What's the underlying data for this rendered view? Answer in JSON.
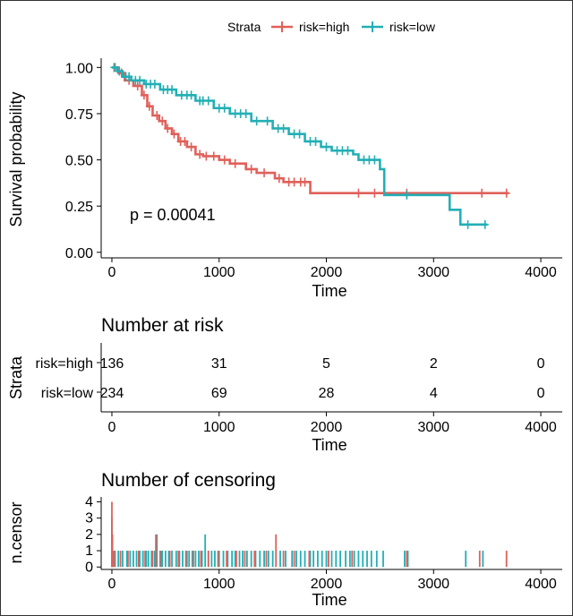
{
  "legend": {
    "title": "Strata",
    "items": [
      {
        "label": "risk=high",
        "color": "#E0605A"
      },
      {
        "label": "risk=low",
        "color": "#22AFB5"
      }
    ]
  },
  "chart_data": [
    {
      "type": "line",
      "name": "survival",
      "xlabel": "Time",
      "ylabel": "Survival probability",
      "xlim": [
        -100,
        4200
      ],
      "ylim": [
        -0.03,
        1.05
      ],
      "xticks": [
        0,
        1000,
        2000,
        3000,
        4000
      ],
      "yticks": [
        0.0,
        0.25,
        0.5,
        0.75,
        1.0
      ],
      "ytick_labels": [
        "0.00",
        "0.25",
        "0.50",
        "0.75",
        "1.00"
      ],
      "annotation": "p = 0.00041",
      "series": [
        {
          "name": "risk=high",
          "color": "#E0605A",
          "x": [
            0,
            60,
            120,
            200,
            280,
            330,
            380,
            440,
            500,
            560,
            620,
            700,
            780,
            850,
            1000,
            1100,
            1250,
            1350,
            1520,
            1600,
            1850,
            3700
          ],
          "y": [
            1.0,
            0.97,
            0.93,
            0.9,
            0.85,
            0.79,
            0.74,
            0.71,
            0.67,
            0.64,
            0.6,
            0.57,
            0.53,
            0.52,
            0.5,
            0.48,
            0.45,
            0.43,
            0.4,
            0.38,
            0.32,
            0.32
          ],
          "censor_x": [
            30,
            90,
            160,
            240,
            300,
            350,
            420,
            470,
            520,
            580,
            640,
            680,
            740,
            820,
            880,
            950,
            1050,
            1150,
            1300,
            1420,
            1560,
            1650,
            1700,
            1760,
            1800,
            2300,
            2450,
            2750,
            3450,
            3680
          ]
        },
        {
          "name": "risk=low",
          "color": "#22AFB5",
          "x": [
            0,
            50,
            100,
            180,
            300,
            450,
            600,
            780,
            950,
            1100,
            1300,
            1500,
            1650,
            1800,
            1950,
            2050,
            2250,
            2300,
            2500,
            2540,
            3150,
            3250,
            3500
          ],
          "y": [
            1.0,
            0.98,
            0.95,
            0.93,
            0.91,
            0.88,
            0.85,
            0.82,
            0.78,
            0.75,
            0.71,
            0.67,
            0.64,
            0.6,
            0.57,
            0.55,
            0.53,
            0.5,
            0.45,
            0.31,
            0.23,
            0.15,
            0.15
          ],
          "censor_x": [
            20,
            70,
            130,
            160,
            220,
            260,
            320,
            360,
            400,
            480,
            520,
            560,
            650,
            700,
            740,
            820,
            850,
            900,
            1000,
            1050,
            1150,
            1200,
            1250,
            1350,
            1450,
            1550,
            1600,
            1700,
            1750,
            1850,
            1900,
            2000,
            2100,
            2150,
            2200,
            2350,
            2400,
            2450,
            2750,
            3320,
            3480
          ]
        }
      ]
    },
    {
      "type": "table",
      "name": "number-at-risk",
      "title": "Number at risk",
      "xlabel": "Time",
      "ylabel": "Strata",
      "xticks": [
        0,
        1000,
        2000,
        3000,
        4000
      ],
      "rows": [
        {
          "label": "risk=high",
          "color": "#E0605A",
          "values": [
            "136",
            "31",
            "5",
            "2",
            "0"
          ]
        },
        {
          "label": "risk=low",
          "color": "#22AFB5",
          "values": [
            "234",
            "69",
            "28",
            "4",
            "0"
          ]
        }
      ]
    },
    {
      "type": "bar",
      "name": "number-of-censoring",
      "title": "Number of censoring",
      "xlabel": "Time",
      "ylabel": "n.censor",
      "xticks": [
        0,
        1000,
        2000,
        3000,
        4000
      ],
      "yticks": [
        0,
        1,
        2,
        3,
        4
      ],
      "ylim": [
        -0.15,
        4.3
      ],
      "series": [
        {
          "name": "risk=low",
          "color": "#22AFB5",
          "events": [
            [
              0,
              3
            ],
            [
              3,
              2
            ],
            [
              6,
              1
            ],
            [
              30,
              1
            ],
            [
              60,
              1
            ],
            [
              100,
              1
            ],
            [
              140,
              1
            ],
            [
              170,
              1
            ],
            [
              200,
              1
            ],
            [
              230,
              1
            ],
            [
              260,
              1
            ],
            [
              290,
              1
            ],
            [
              320,
              1
            ],
            [
              340,
              1
            ],
            [
              370,
              1
            ],
            [
              400,
              1
            ],
            [
              420,
              2
            ],
            [
              450,
              1
            ],
            [
              470,
              1
            ],
            [
              500,
              1
            ],
            [
              530,
              1
            ],
            [
              560,
              1
            ],
            [
              600,
              1
            ],
            [
              630,
              1
            ],
            [
              660,
              1
            ],
            [
              700,
              1
            ],
            [
              720,
              1
            ],
            [
              750,
              1
            ],
            [
              780,
              1
            ],
            [
              810,
              1
            ],
            [
              840,
              1
            ],
            [
              870,
              2
            ],
            [
              900,
              1
            ],
            [
              930,
              1
            ],
            [
              960,
              1
            ],
            [
              1000,
              1
            ],
            [
              1040,
              1
            ],
            [
              1080,
              1
            ],
            [
              1120,
              1
            ],
            [
              1150,
              1
            ],
            [
              1190,
              1
            ],
            [
              1220,
              1
            ],
            [
              1260,
              1
            ],
            [
              1300,
              1
            ],
            [
              1340,
              1
            ],
            [
              1380,
              1
            ],
            [
              1420,
              1
            ],
            [
              1460,
              1
            ],
            [
              1500,
              1
            ],
            [
              1570,
              1
            ],
            [
              1620,
              1
            ],
            [
              1680,
              1
            ],
            [
              1720,
              1
            ],
            [
              1760,
              1
            ],
            [
              1800,
              1
            ],
            [
              1850,
              1
            ],
            [
              1880,
              1
            ],
            [
              1920,
              1
            ],
            [
              1960,
              1
            ],
            [
              2000,
              1
            ],
            [
              2050,
              1
            ],
            [
              2090,
              1
            ],
            [
              2130,
              1
            ],
            [
              2180,
              1
            ],
            [
              2220,
              1
            ],
            [
              2260,
              1
            ],
            [
              2300,
              1
            ],
            [
              2340,
              1
            ],
            [
              2380,
              1
            ],
            [
              2420,
              1
            ],
            [
              2470,
              1
            ],
            [
              2530,
              1
            ],
            [
              2730,
              1
            ],
            [
              2760,
              1
            ],
            [
              3300,
              1
            ],
            [
              3460,
              1
            ]
          ]
        },
        {
          "name": "risk=high",
          "color": "#E0605A",
          "events": [
            [
              0,
              4
            ],
            [
              5,
              2
            ],
            [
              20,
              1
            ],
            [
              80,
              1
            ],
            [
              150,
              1
            ],
            [
              250,
              1
            ],
            [
              310,
              1
            ],
            [
              380,
              1
            ],
            [
              410,
              2
            ],
            [
              460,
              1
            ],
            [
              540,
              1
            ],
            [
              620,
              1
            ],
            [
              690,
              1
            ],
            [
              760,
              1
            ],
            [
              830,
              1
            ],
            [
              900,
              1
            ],
            [
              990,
              1
            ],
            [
              1070,
              1
            ],
            [
              1160,
              1
            ],
            [
              1240,
              1
            ],
            [
              1330,
              1
            ],
            [
              1440,
              1
            ],
            [
              1530,
              2
            ],
            [
              1600,
              1
            ],
            [
              1700,
              1
            ],
            [
              1840,
              1
            ],
            [
              2020,
              1
            ],
            [
              2240,
              1
            ],
            [
              2750,
              1
            ],
            [
              3430,
              1
            ],
            [
              3680,
              1
            ]
          ]
        }
      ]
    }
  ]
}
